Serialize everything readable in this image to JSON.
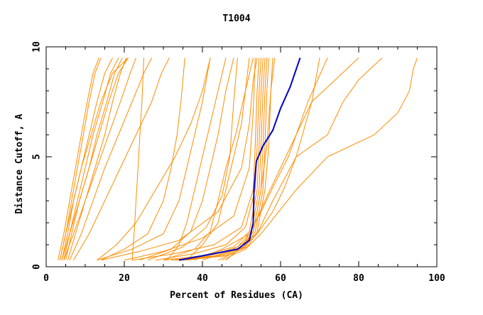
{
  "chart_data": {
    "type": "line",
    "title": "T1004",
    "xlabel": "Percent of Residues (CA)",
    "ylabel": "Distance Cutoff, A",
    "xlim": [
      0,
      100
    ],
    "ylim": [
      0,
      10
    ],
    "x_ticks": [
      "0",
      "20",
      "40",
      "60",
      "80",
      "100"
    ],
    "y_ticks": [
      "0",
      "5",
      "10"
    ],
    "colors": {
      "series": "#ff8c00",
      "highlight": "#0000cc"
    },
    "series": [
      {
        "x": [
          3.5,
          5,
          6.5,
          8,
          9.5,
          11,
          12.5,
          14
        ],
        "y": [
          0.3,
          1.5,
          3,
          4.5,
          6,
          7.5,
          8.8,
          9.5
        ]
      },
      {
        "x": [
          4,
          5.5,
          7,
          9,
          11,
          13,
          15,
          17
        ],
        "y": [
          0.3,
          1.5,
          3,
          4.5,
          6,
          7.5,
          8.8,
          9.5
        ]
      },
      {
        "x": [
          4.5,
          6,
          8,
          10,
          12,
          14.5,
          16.5,
          18.5
        ],
        "y": [
          0.3,
          1.5,
          3,
          4.5,
          6,
          7.5,
          8.8,
          9.5
        ]
      },
      {
        "x": [
          5,
          6.5,
          8.5,
          11,
          13,
          15.5,
          17.5,
          19.5
        ],
        "y": [
          0.3,
          1.5,
          3,
          4.5,
          6,
          7.5,
          8.8,
          9.5
        ]
      },
      {
        "x": [
          3,
          4.5,
          6,
          7.5,
          9,
          10.5,
          12,
          13.5
        ],
        "y": [
          0.3,
          1.5,
          3,
          4.5,
          6,
          7.5,
          8.8,
          9.5
        ]
      },
      {
        "x": [
          4,
          6,
          8.5,
          11,
          13.5,
          16,
          18.5,
          21
        ],
        "y": [
          0.3,
          1.5,
          3,
          4.5,
          6,
          7.5,
          8.8,
          9.5
        ]
      },
      {
        "x": [
          5.5,
          7.5,
          10,
          12.5,
          15,
          17,
          19,
          20.5
        ],
        "y": [
          0.3,
          1.5,
          3,
          4.5,
          6,
          7.5,
          8.8,
          9.5
        ]
      },
      {
        "x": [
          3.5,
          5,
          7,
          9,
          11.5,
          14,
          17,
          21
        ],
        "y": [
          0.3,
          1.5,
          3,
          4.5,
          6,
          7.5,
          8.8,
          9.5
        ]
      },
      {
        "x": [
          4.5,
          7,
          10,
          13,
          16,
          19,
          21.5,
          23
        ],
        "y": [
          0.3,
          1.5,
          3,
          4.5,
          6,
          7.5,
          8.8,
          9.5
        ]
      },
      {
        "x": [
          6,
          9,
          12,
          15,
          18.5,
          22,
          25,
          27
        ],
        "y": [
          0.3,
          1.5,
          3,
          4.5,
          6,
          7.5,
          8.8,
          9.5
        ]
      },
      {
        "x": [
          7,
          11,
          15,
          19,
          23,
          27,
          29.5,
          31.5
        ],
        "y": [
          0.3,
          1.5,
          3,
          4.5,
          6,
          7.5,
          8.8,
          9.5
        ]
      },
      {
        "x": [
          13,
          18,
          23,
          28,
          33,
          37,
          40,
          42
        ],
        "y": [
          0.3,
          1.0,
          2.0,
          3.5,
          5.0,
          6.5,
          8.0,
          9.5
        ]
      },
      {
        "x": [
          22,
          22.5,
          23,
          23.5,
          24,
          24.5,
          25
        ],
        "y": [
          0.3,
          1.5,
          3,
          4.5,
          6,
          7.5,
          9.5
        ]
      },
      {
        "x": [
          14,
          20,
          26,
          30,
          32,
          33.5,
          34.5,
          35.5
        ],
        "y": [
          0.3,
          0.8,
          1.5,
          3,
          4.5,
          6,
          7.5,
          9.5
        ]
      },
      {
        "x": [
          13,
          22,
          30,
          34,
          36,
          38,
          40,
          42
        ],
        "y": [
          0.3,
          0.8,
          1.5,
          3,
          4.5,
          6,
          7.5,
          9.5
        ]
      },
      {
        "x": [
          24,
          32,
          37,
          40,
          42,
          44,
          46,
          48
        ],
        "y": [
          0.3,
          0.8,
          1.6,
          3,
          4.5,
          6,
          8,
          9.5
        ]
      },
      {
        "x": [
          30,
          38,
          42,
          44,
          46,
          48.5,
          51,
          53
        ],
        "y": [
          0.3,
          0.8,
          1.6,
          3,
          4.5,
          6,
          8,
          9.5
        ]
      },
      {
        "x": [
          26,
          35,
          41,
          45,
          47,
          48,
          49
        ],
        "y": [
          0.3,
          0.9,
          1.8,
          3.2,
          5,
          7.5,
          9.5
        ]
      },
      {
        "x": [
          14,
          24,
          34,
          44,
          50,
          52,
          53,
          54
        ],
        "y": [
          0.3,
          0.7,
          1.2,
          2.5,
          4.5,
          6.5,
          8.5,
          9.5
        ]
      },
      {
        "x": [
          22,
          33,
          43,
          50,
          53,
          53.5,
          54,
          54.5
        ],
        "y": [
          0.3,
          0.6,
          1.0,
          1.8,
          3.5,
          5.5,
          8,
          9.5
        ]
      },
      {
        "x": [
          28,
          38,
          46,
          51,
          53.5,
          54,
          54.5,
          55
        ],
        "y": [
          0.3,
          0.6,
          1.0,
          1.8,
          3.5,
          5.5,
          8,
          9.5
        ]
      },
      {
        "x": [
          30,
          40,
          48,
          52,
          54,
          54.5,
          55,
          55.5
        ],
        "y": [
          0.3,
          0.5,
          0.9,
          1.6,
          3.5,
          5.5,
          8,
          9.5
        ]
      },
      {
        "x": [
          32,
          42,
          49,
          52.5,
          54.5,
          55,
          55.5,
          56
        ],
        "y": [
          0.3,
          0.5,
          0.9,
          1.6,
          3.5,
          5.5,
          8,
          9.5
        ]
      },
      {
        "x": [
          34,
          44,
          50,
          53,
          55,
          55.5,
          56,
          56.5
        ],
        "y": [
          0.3,
          0.5,
          0.9,
          1.6,
          3.5,
          5.5,
          8,
          9.5
        ]
      },
      {
        "x": [
          36,
          45,
          51,
          53.5,
          55.5,
          56,
          56.5,
          57
        ],
        "y": [
          0.3,
          0.5,
          0.9,
          1.6,
          3.5,
          5.5,
          8,
          9.5
        ]
      },
      {
        "x": [
          35,
          46,
          51.5,
          54,
          56,
          57,
          57.5,
          58
        ],
        "y": [
          0.3,
          0.5,
          0.9,
          1.6,
          3.5,
          5.5,
          8,
          9.5
        ]
      },
      {
        "x": [
          33,
          44,
          50.5,
          53,
          55,
          56.5,
          57.5,
          58.5
        ],
        "y": [
          0.3,
          0.5,
          0.9,
          1.6,
          3.5,
          5.5,
          8,
          9.5
        ]
      },
      {
        "x": [
          20,
          30,
          40,
          48,
          52,
          53,
          53.5
        ],
        "y": [
          0.3,
          0.7,
          1.3,
          2.3,
          4.5,
          7,
          9.5
        ]
      },
      {
        "x": [
          31,
          34,
          36,
          38,
          40,
          42,
          44,
          46
        ],
        "y": [
          0.3,
          1.0,
          2.0,
          3.5,
          5.0,
          6.5,
          8.0,
          9.5
        ]
      },
      {
        "x": [
          36,
          40,
          44,
          46,
          48,
          50,
          51,
          52
        ],
        "y": [
          0.3,
          1.0,
          2.0,
          3.5,
          5.0,
          6.5,
          8.0,
          9.5
        ]
      },
      {
        "x": [
          38,
          45,
          52,
          55,
          58,
          62,
          67,
          72
        ],
        "y": [
          0.3,
          0.8,
          1.5,
          2.5,
          3.6,
          5.0,
          7.5,
          9.5
        ]
      },
      {
        "x": [
          40,
          48,
          54,
          58,
          61,
          64,
          68,
          80
        ],
        "y": [
          0.3,
          0.8,
          1.5,
          2.5,
          3.6,
          5.0,
          7.5,
          9.5
        ]
      },
      {
        "x": [
          44,
          50,
          54,
          58,
          64,
          72,
          76,
          80,
          86
        ],
        "y": [
          0.3,
          0.8,
          1.5,
          3.0,
          5.0,
          6.0,
          7.5,
          8.5,
          9.5
        ]
      },
      {
        "x": [
          45,
          51,
          55,
          64,
          72,
          84,
          90,
          93,
          94,
          95
        ],
        "y": [
          0.3,
          0.8,
          1.5,
          3.5,
          5.0,
          6.0,
          7.0,
          8.0,
          9.0,
          9.5
        ]
      },
      {
        "x": [
          46,
          50,
          53,
          56,
          60,
          64,
          68,
          70
        ],
        "y": [
          0.3,
          0.9,
          1.8,
          3.0,
          4.5,
          6.0,
          7.5,
          9.5
        ]
      }
    ],
    "highlight": {
      "x": [
        34,
        40,
        49,
        52,
        53,
        53.2,
        53.8,
        55.5,
        58,
        60,
        62.5,
        65
      ],
      "y": [
        0.3,
        0.5,
        0.8,
        1.2,
        2.0,
        3.5,
        4.8,
        5.5,
        6.2,
        7.2,
        8.2,
        9.5
      ]
    }
  }
}
